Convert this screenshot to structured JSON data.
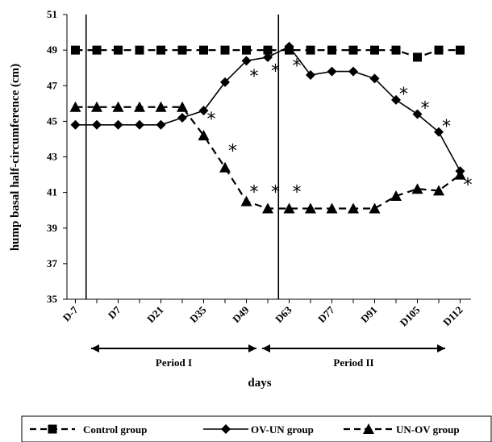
{
  "chart_data": {
    "type": "line",
    "xlabel": "days",
    "ylabel": "hump basal half-circumference (cm)",
    "ylim": [
      35,
      51
    ],
    "yticks": [
      "35",
      "37",
      "39",
      "41",
      "43",
      "45",
      "47",
      "49",
      "51"
    ],
    "categories": [
      "D-7",
      "",
      "D7",
      "",
      "D21",
      "",
      "D35",
      "",
      "D49",
      "",
      "D63",
      "",
      "D77",
      "",
      "D91",
      "",
      "D105",
      "",
      "D112"
    ],
    "grid": false,
    "legend_position": "bottom",
    "series": [
      {
        "name": "Control group",
        "style": "dashed",
        "marker": "square",
        "values": [
          49,
          49,
          49,
          49,
          49,
          49,
          49,
          49,
          49,
          49,
          49,
          49,
          49,
          49,
          49,
          49,
          48.6,
          49,
          49
        ]
      },
      {
        "name": "OV-UN group",
        "style": "solid",
        "marker": "diamond",
        "values": [
          44.8,
          44.8,
          44.8,
          44.8,
          44.8,
          45.2,
          45.6,
          47.2,
          48.4,
          48.6,
          49.2,
          47.6,
          47.8,
          47.8,
          47.4,
          46.2,
          45.4,
          44.4,
          42.2
        ]
      },
      {
        "name": "UN-OV group",
        "style": "dashed",
        "marker": "triangle",
        "values": [
          45.8,
          45.8,
          45.8,
          45.8,
          45.8,
          45.8,
          44.2,
          42.4,
          40.5,
          40.1,
          40.1,
          40.1,
          40.1,
          40.1,
          40.1,
          40.8,
          41.2,
          41.1,
          42.0
        ]
      }
    ],
    "significance_marks": [
      {
        "symbol": "*",
        "index": 6,
        "y": 45.2
      },
      {
        "symbol": "*",
        "index": 7,
        "y": 43.4
      },
      {
        "symbol": "*",
        "index": 8,
        "y": 47.6
      },
      {
        "symbol": "*",
        "index": 8,
        "y": 41.1
      },
      {
        "symbol": "*",
        "index": 9,
        "y": 47.9
      },
      {
        "symbol": "*",
        "index": 9,
        "y": 41.1
      },
      {
        "symbol": "*",
        "index": 10,
        "y": 48.2
      },
      {
        "symbol": "*",
        "index": 10,
        "y": 41.1
      },
      {
        "symbol": "*",
        "index": 15,
        "y": 46.6
      },
      {
        "symbol": "*",
        "index": 16,
        "y": 45.8
      },
      {
        "symbol": "*",
        "index": 17,
        "y": 44.8
      },
      {
        "symbol": "*",
        "index": 18,
        "y": 41.5
      }
    ],
    "period_dividers": [
      0.5,
      9.5
    ],
    "periods": [
      {
        "label": "Period I",
        "from": 0,
        "to": 9.5
      },
      {
        "label": "Period II",
        "from": 9.5,
        "to": 18.5
      }
    ]
  }
}
